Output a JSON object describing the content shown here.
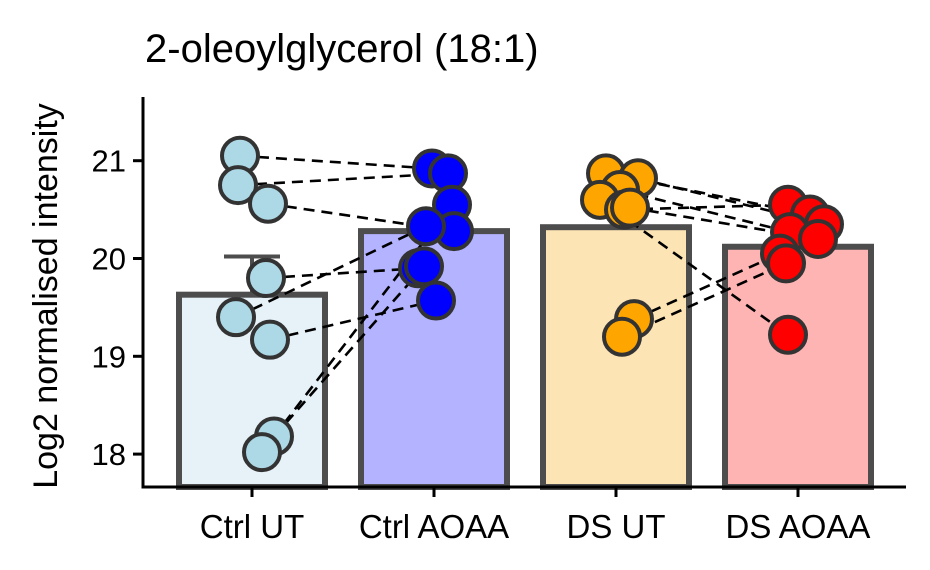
{
  "chart_data": {
    "type": "bar",
    "title": "2-oleoylglycerol (18:1)",
    "ylabel": "Log2 normalised intensity",
    "xlabel": "",
    "ylim": [
      17.65,
      21.65
    ],
    "yticks": [
      18,
      19,
      20,
      21
    ],
    "categories": [
      "Ctrl UT",
      "Ctrl AOAA",
      "DS UT",
      "DS AOAA"
    ],
    "bar_means": [
      19.63,
      20.28,
      20.32,
      20.12
    ],
    "error_upper": [
      20.02,
      null,
      20.58,
      null
    ],
    "bar_fill_colors": [
      "#e6f2f8",
      "#b3b3ff",
      "#fde4b4",
      "#ffb4b4"
    ],
    "point_colors": [
      "#add8e6",
      "#0000ff",
      "#ffa500",
      "#ff0000"
    ],
    "edge_color": "#4d4d4d",
    "points": [
      [
        21.05,
        20.75,
        20.56,
        19.8,
        19.4,
        19.17,
        18.18,
        18.02
      ],
      [
        20.92,
        20.87,
        20.55,
        20.28,
        20.33,
        19.9,
        19.92,
        19.57
      ],
      [
        20.87,
        20.82,
        20.7,
        20.6,
        20.5,
        20.52,
        19.38,
        19.2
      ],
      [
        20.55,
        20.45,
        20.35,
        20.27,
        20.2,
        20.05,
        19.95,
        19.22
      ]
    ],
    "pairs": [
      [
        21.05,
        20.92
      ],
      [
        20.75,
        20.87
      ],
      [
        20.56,
        20.28
      ],
      [
        19.8,
        19.9
      ],
      [
        19.4,
        20.33
      ],
      [
        19.17,
        19.57
      ],
      [
        18.18,
        19.92
      ],
      [
        18.02,
        20.55
      ],
      [
        20.87,
        20.45
      ],
      [
        20.82,
        20.35
      ],
      [
        20.7,
        20.27
      ],
      [
        20.6,
        19.22
      ],
      [
        20.52,
        20.2
      ],
      [
        20.5,
        20.55
      ],
      [
        19.38,
        20.05
      ],
      [
        19.2,
        19.95
      ]
    ]
  }
}
